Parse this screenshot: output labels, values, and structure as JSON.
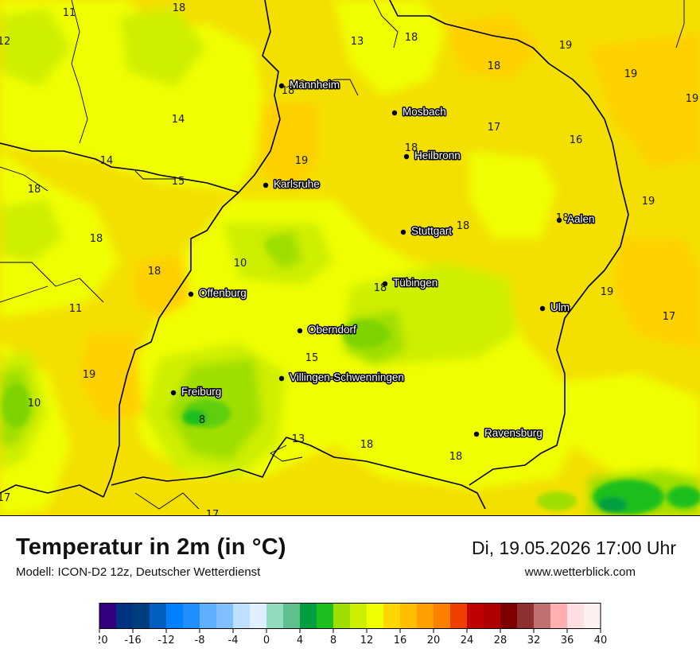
{
  "header": {
    "title": "Temperatur in 2m (in °C)",
    "model": "Modell: ICON-D2 12z, Deutscher Wetterdienst",
    "datetime": "Di, 19.05.2026 17:00 Uhr",
    "website": "www.wetterblick.com"
  },
  "cities": [
    {
      "name": "Mannheim"
    },
    {
      "name": "Mosbach"
    },
    {
      "name": "Heilbronn"
    },
    {
      "name": "Karlsruhe"
    },
    {
      "name": "Aalen"
    },
    {
      "name": "Stuttgart"
    },
    {
      "name": "Offenburg"
    },
    {
      "name": "Tübingen"
    },
    {
      "name": "Ulm"
    },
    {
      "name": "Oberndorf"
    },
    {
      "name": "Villingen-Schwenningen"
    },
    {
      "name": "Freiburg"
    },
    {
      "name": "Ravensburg"
    }
  ],
  "temperature_values": [
    "11",
    "18",
    "13",
    "18",
    "19",
    "12",
    "18",
    "19",
    "19",
    "18",
    "14",
    "17",
    "16",
    "19",
    "18",
    "14",
    "15",
    "18",
    "18",
    "19",
    "18",
    "18",
    "10",
    "18",
    "11",
    "19",
    "18",
    "15",
    "19",
    "17",
    "10",
    "8",
    "13",
    "18",
    "18",
    "17",
    "17"
  ],
  "legend": {
    "ticks": [
      "-20",
      "-16",
      "-12",
      "-8",
      "-4",
      "0",
      "4",
      "8",
      "12",
      "16",
      "20",
      "24",
      "28",
      "32",
      "36",
      "40"
    ],
    "min": -20,
    "max": 40,
    "step": 2,
    "colors": [
      "#33007f",
      "#00337f",
      "#003f7f",
      "#005fbf",
      "#007fff",
      "#1f8fff",
      "#5fafff",
      "#7fbfff",
      "#bfdfff",
      "#dfefff",
      "#91dbbf",
      "#5fbf8f",
      "#009f3f",
      "#1fbf1f",
      "#9fdf00",
      "#cfef00",
      "#f0ff00",
      "#ffd700",
      "#ffbf00",
      "#ff9f00",
      "#ff7f00",
      "#ef3f00",
      "#bf0000",
      "#af0000",
      "#7f0000",
      "#8f2f2f",
      "#bf6f6f",
      "#ffafaf",
      "#ffdfdf",
      "#fff0f0"
    ]
  },
  "map_colors": {
    "yellow": "#f0ff00",
    "gold": "#ffd700",
    "amber": "#f5c200",
    "lime": "#cfef00",
    "green": "#9fdf00",
    "deep_green": "#1fbf1f",
    "dark_green": "#009f3f"
  }
}
